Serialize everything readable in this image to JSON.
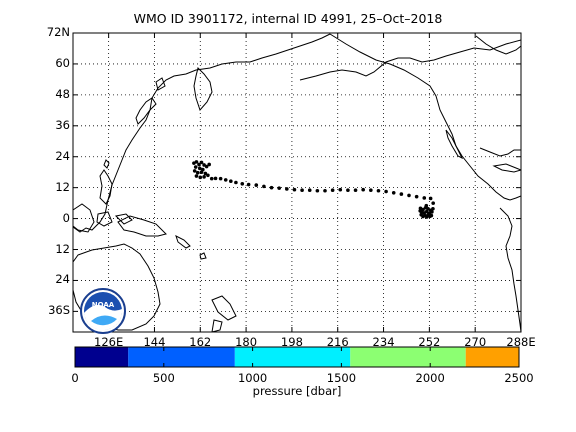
{
  "title": "WMO ID 3901172, internal ID 4991, 25–Oct–2018",
  "map": {
    "lat_labels": [
      "72N",
      "60",
      "48",
      "36",
      "24",
      "12",
      "0",
      "12",
      "24",
      "36S"
    ],
    "lon_labels": [
      "126E",
      "144",
      "162",
      "180",
      "198",
      "216",
      "234",
      "252",
      "270",
      "288E"
    ],
    "grid": "dotted",
    "logo_text": "NOAA"
  },
  "colorbar": {
    "title": "pressure [dbar]",
    "tick_labels": [
      "0",
      "500",
      "1000",
      "1500",
      "2000",
      "2500"
    ],
    "segments": [
      {
        "from": 0,
        "to": 300,
        "color": "#00008f"
      },
      {
        "from": 300,
        "to": 900,
        "color": "#0060ff"
      },
      {
        "from": 900,
        "to": 1550,
        "color": "#00efff"
      },
      {
        "from": 1550,
        "to": 2200,
        "color": "#8cff72"
      },
      {
        "from": 2200,
        "to": 2500,
        "color": "#ffa000"
      }
    ]
  },
  "chart_data": {
    "type": "scatter",
    "title": "WMO ID 3901172, internal ID 4991, 25–Oct–2018",
    "xlim": [
      112,
      288
    ],
    "ylim": [
      -44,
      72
    ],
    "float_positions": [
      [
        159.5,
        21.5
      ],
      [
        160.5,
        22.0
      ],
      [
        161.5,
        21.0
      ],
      [
        162.5,
        21.8
      ],
      [
        163.5,
        20.8
      ],
      [
        160.2,
        20.0
      ],
      [
        161.8,
        19.5
      ],
      [
        163.0,
        19.0
      ],
      [
        164.5,
        20.2
      ],
      [
        165.5,
        21.0
      ],
      [
        159.8,
        18.5
      ],
      [
        161.0,
        17.8
      ],
      [
        162.5,
        18.0
      ],
      [
        164.0,
        17.5
      ],
      [
        160.5,
        16.5
      ],
      [
        162.0,
        16.0
      ],
      [
        163.5,
        16.2
      ],
      [
        165.0,
        16.8
      ],
      [
        166.5,
        15.5
      ],
      [
        168.0,
        15.6
      ],
      [
        170.0,
        15.5
      ],
      [
        172.0,
        15.0
      ],
      [
        174.0,
        14.5
      ],
      [
        176.0,
        14.0
      ],
      [
        178.5,
        13.5
      ],
      [
        181.0,
        13.2
      ],
      [
        184.0,
        13.0
      ],
      [
        187.0,
        12.5
      ],
      [
        190.0,
        12.0
      ],
      [
        193.0,
        11.8
      ],
      [
        196.0,
        11.5
      ],
      [
        199.0,
        11.2
      ],
      [
        202.0,
        11.0
      ],
      [
        205.0,
        11.0
      ],
      [
        208.0,
        10.8
      ],
      [
        211.0,
        10.8
      ],
      [
        214.0,
        11.0
      ],
      [
        217.0,
        11.2
      ],
      [
        220.0,
        11.0
      ],
      [
        223.0,
        11.0
      ],
      [
        226.0,
        11.2
      ],
      [
        229.0,
        11.0
      ],
      [
        232.0,
        10.8
      ],
      [
        235.0,
        10.5
      ],
      [
        238.0,
        10.0
      ],
      [
        241.0,
        9.5
      ],
      [
        244.0,
        9.0
      ],
      [
        247.0,
        8.5
      ],
      [
        250.0,
        8.0
      ],
      [
        252.5,
        7.8
      ],
      [
        253.5,
        6.0
      ],
      [
        248.5,
        4.0
      ],
      [
        249.5,
        3.5
      ],
      [
        250.5,
        4.2
      ],
      [
        251.5,
        3.8
      ],
      [
        252.5,
        3.2
      ],
      [
        249.0,
        2.5
      ],
      [
        250.0,
        2.2
      ],
      [
        251.0,
        2.8
      ],
      [
        252.0,
        2.0
      ],
      [
        253.0,
        2.6
      ],
      [
        248.8,
        1.5
      ],
      [
        250.2,
        1.2
      ],
      [
        251.5,
        1.5
      ],
      [
        252.8,
        1.2
      ],
      [
        249.5,
        0.8
      ],
      [
        251.0,
        0.6
      ],
      [
        252.3,
        0.9
      ],
      [
        248.4,
        3.0
      ],
      [
        253.4,
        3.8
      ],
      [
        250.8,
        5.0
      ]
    ]
  }
}
